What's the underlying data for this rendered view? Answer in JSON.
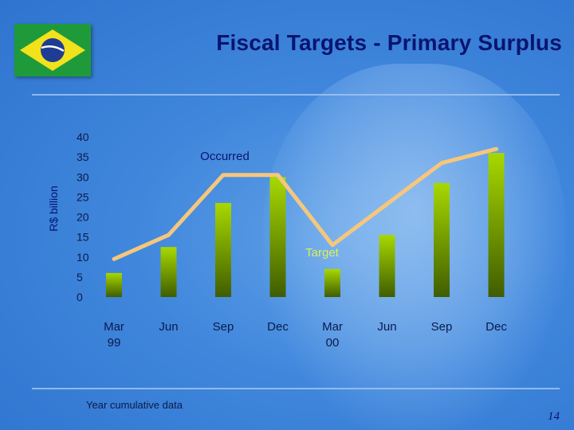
{
  "header": {
    "title": "Fiscal Targets - Primary Surplus"
  },
  "footer": {
    "note": "Year cumulative data",
    "page_number": "14"
  },
  "colors": {
    "line": "#f5c77c",
    "bar_top": "#a8d800",
    "bar_bottom": "#3f5d00",
    "title": "#0a1470"
  },
  "icons": {
    "flag": "brazil-flag-icon"
  },
  "chart_data": {
    "type": "bar",
    "ylabel": "R$ billion",
    "ylim": [
      0,
      40
    ],
    "yticks": [
      0,
      5,
      10,
      15,
      20,
      25,
      30,
      35,
      40
    ],
    "categories": [
      [
        "Mar",
        "99"
      ],
      [
        "Jun"
      ],
      [
        "Sep"
      ],
      [
        "Dec"
      ],
      [
        "Mar",
        "00"
      ],
      [
        "Jun"
      ],
      [
        "Sep"
      ],
      [
        "Dec"
      ]
    ],
    "series": [
      {
        "name": "Occurred",
        "type": "bar",
        "values": [
          6,
          12.5,
          23.5,
          30,
          7,
          15.5,
          28.5,
          36
        ]
      },
      {
        "name": "Target",
        "type": "line",
        "values": [
          9.5,
          15.5,
          30.5,
          30.5,
          13,
          null,
          33.5,
          37
        ]
      }
    ],
    "annotations": [
      {
        "text": "Occurred"
      },
      {
        "text": "Target"
      }
    ],
    "grid": false,
    "legend": "none"
  }
}
